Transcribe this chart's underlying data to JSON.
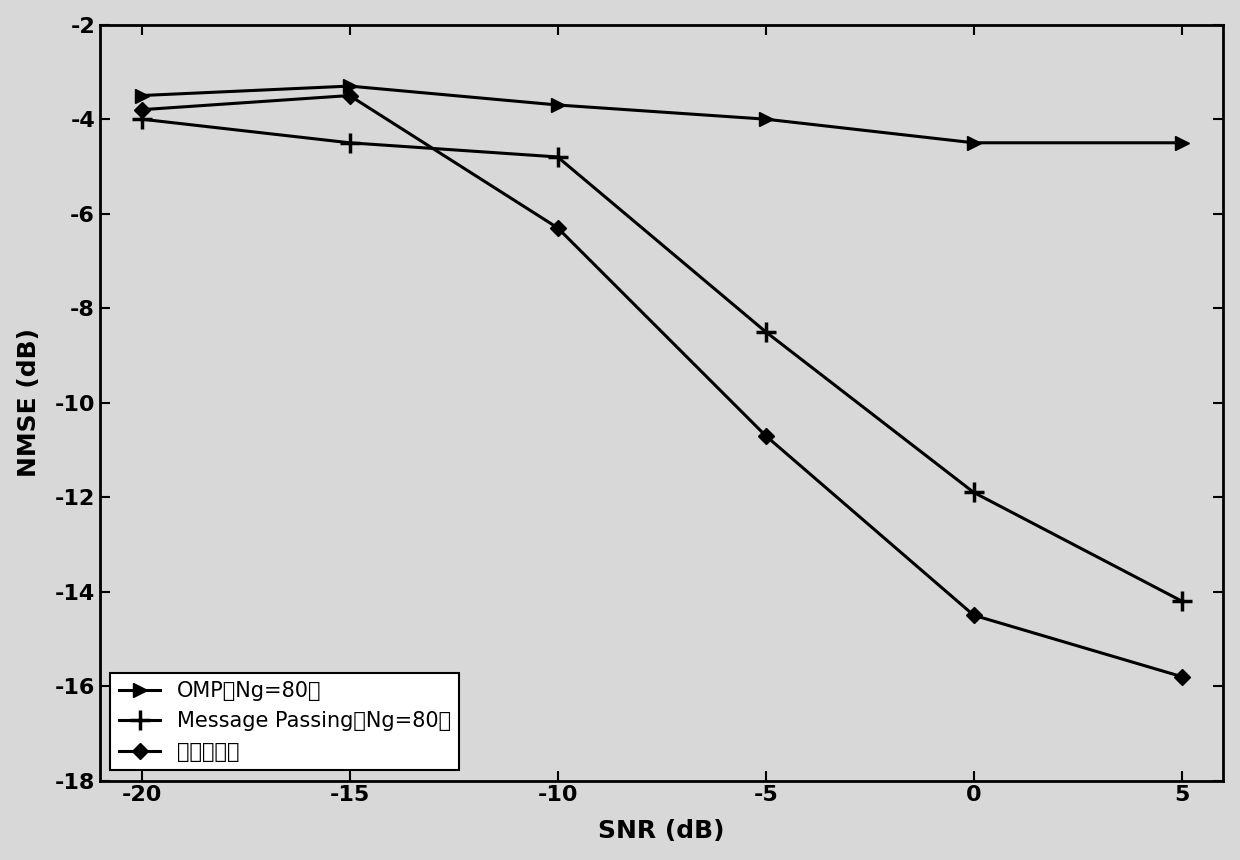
{
  "snr": [
    -20,
    -15,
    -10,
    -5,
    0,
    5
  ],
  "omp": [
    -3.5,
    -3.3,
    -3.7,
    -4.0,
    -4.5,
    -4.5
  ],
  "mp": [
    -4.0,
    -4.5,
    -4.8,
    -8.5,
    -11.9,
    -14.2
  ],
  "proposed": [
    -3.8,
    -3.5,
    -6.3,
    -10.7,
    -14.5,
    -15.8
  ],
  "xlabel": "SNR (dB)",
  "ylabel": "NMSE (dB)",
  "ylim": [
    -18,
    -2
  ],
  "xlim": [
    -21,
    6
  ],
  "yticks": [
    -18,
    -16,
    -14,
    -12,
    -10,
    -8,
    -6,
    -4,
    -2
  ],
  "xticks": [
    -20,
    -15,
    -10,
    -5,
    0,
    5
  ],
  "legend_omp": "OMP（Ng=80）",
  "legend_mp": "Message Passing（Ng=80）",
  "legend_proposed": "本发明方法",
  "line_color": "#000000",
  "linewidth": 2.2,
  "marker_size": 10,
  "bg_color": "#d8d8d8"
}
